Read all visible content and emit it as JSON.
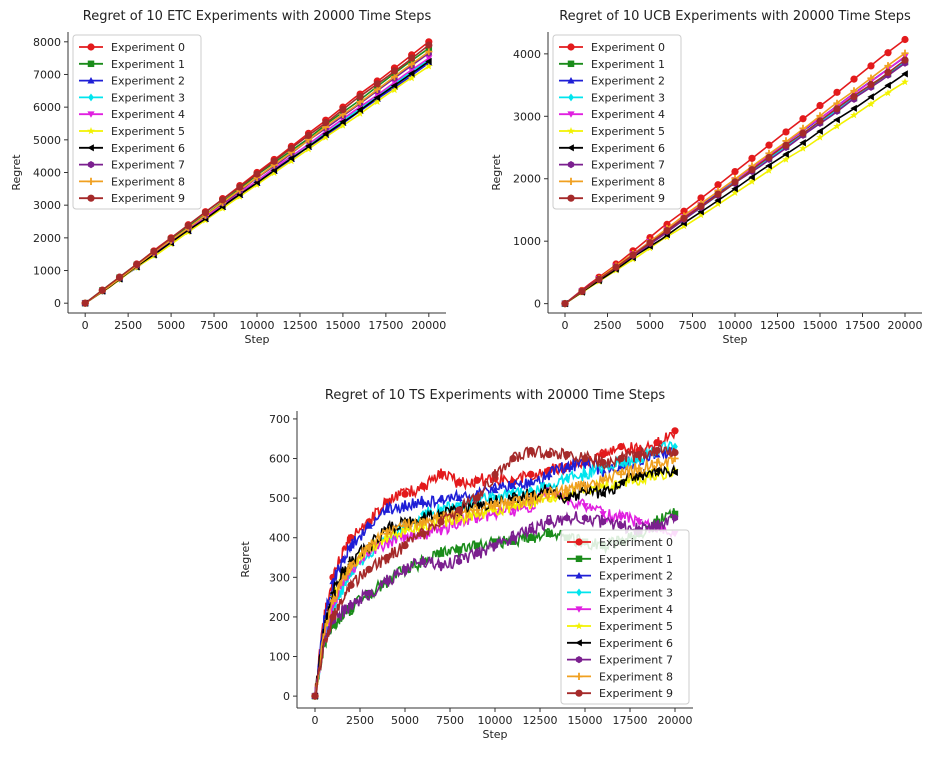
{
  "chart_data": [
    {
      "type": "line",
      "title": "Regret of 10 ETC Experiments with 20000 Time Steps",
      "xlabel": "Step",
      "ylabel": "Regret",
      "xlim": [
        -1000,
        21000
      ],
      "ylim": [
        -300,
        8300
      ],
      "xticks": [
        0,
        2500,
        5000,
        7500,
        10000,
        12500,
        15000,
        17500,
        20000
      ],
      "yticks": [
        0,
        1000,
        2000,
        3000,
        4000,
        5000,
        6000,
        7000,
        8000
      ],
      "legend_position": "upper-left",
      "series": [
        {
          "name": "Experiment 0",
          "color": "#e31a1c",
          "marker": "circle",
          "x": [
            0,
            20000
          ],
          "y": [
            0,
            8000
          ]
        },
        {
          "name": "Experiment 1",
          "color": "#1a8c1a",
          "marker": "square",
          "x": [
            0,
            20000
          ],
          "y": [
            0,
            7800
          ]
        },
        {
          "name": "Experiment 2",
          "color": "#1f1fd6",
          "marker": "triangle-up",
          "x": [
            0,
            20000
          ],
          "y": [
            0,
            7350
          ]
        },
        {
          "name": "Experiment 3",
          "color": "#00e5ee",
          "marker": "diamond",
          "x": [
            0,
            20000
          ],
          "y": [
            0,
            7450
          ]
        },
        {
          "name": "Experiment 4",
          "color": "#e020e0",
          "marker": "triangle-down",
          "x": [
            0,
            20000
          ],
          "y": [
            0,
            7500
          ]
        },
        {
          "name": "Experiment 5",
          "color": "#f2f200",
          "marker": "star",
          "x": [
            0,
            20000
          ],
          "y": [
            0,
            7250
          ]
        },
        {
          "name": "Experiment 6",
          "color": "#000000",
          "marker": "triangle-left",
          "x": [
            0,
            20000
          ],
          "y": [
            0,
            7400
          ]
        },
        {
          "name": "Experiment 7",
          "color": "#7b1f8f",
          "marker": "hexagon",
          "x": [
            0,
            20000
          ],
          "y": [
            0,
            7650
          ]
        },
        {
          "name": "Experiment 8",
          "color": "#f0a020",
          "marker": "plus",
          "x": [
            0,
            20000
          ],
          "y": [
            0,
            7700
          ]
        },
        {
          "name": "Experiment 9",
          "color": "#a52a2a",
          "marker": "circle",
          "x": [
            0,
            20000
          ],
          "y": [
            0,
            7900
          ]
        }
      ]
    },
    {
      "type": "line",
      "title": "Regret of 10 UCB Experiments with 20000 Time Steps",
      "xlabel": "Step",
      "ylabel": "Regret",
      "xlim": [
        -1000,
        21000
      ],
      "ylim": [
        -150,
        4350
      ],
      "xticks": [
        0,
        2500,
        5000,
        7500,
        10000,
        12500,
        15000,
        17500,
        20000
      ],
      "yticks": [
        0,
        1000,
        2000,
        3000,
        4000
      ],
      "legend_position": "upper-left",
      "series": [
        {
          "name": "Experiment 0",
          "color": "#e31a1c",
          "marker": "circle",
          "x": [
            0,
            20000
          ],
          "y": [
            0,
            4230
          ]
        },
        {
          "name": "Experiment 1",
          "color": "#1a8c1a",
          "marker": "square",
          "x": [
            0,
            20000
          ],
          "y": [
            0,
            3870
          ]
        },
        {
          "name": "Experiment 2",
          "color": "#1f1fd6",
          "marker": "triangle-up",
          "x": [
            0,
            20000
          ],
          "y": [
            0,
            3950
          ]
        },
        {
          "name": "Experiment 3",
          "color": "#00e5ee",
          "marker": "diamond",
          "x": [
            0,
            20000
          ],
          "y": [
            0,
            3880
          ]
        },
        {
          "name": "Experiment 4",
          "color": "#e020e0",
          "marker": "triangle-down",
          "x": [
            0,
            20000
          ],
          "y": [
            0,
            3960
          ]
        },
        {
          "name": "Experiment 5",
          "color": "#f2f200",
          "marker": "star",
          "x": [
            0,
            20000
          ],
          "y": [
            0,
            3550
          ]
        },
        {
          "name": "Experiment 6",
          "color": "#000000",
          "marker": "triangle-left",
          "x": [
            0,
            20000
          ],
          "y": [
            0,
            3680
          ]
        },
        {
          "name": "Experiment 7",
          "color": "#7b1f8f",
          "marker": "hexagon",
          "x": [
            0,
            20000
          ],
          "y": [
            0,
            3850
          ]
        },
        {
          "name": "Experiment 8",
          "color": "#f0a020",
          "marker": "plus",
          "x": [
            0,
            20000
          ],
          "y": [
            0,
            4010
          ]
        },
        {
          "name": "Experiment 9",
          "color": "#a52a2a",
          "marker": "circle",
          "x": [
            0,
            20000
          ],
          "y": [
            0,
            3900
          ]
        }
      ]
    },
    {
      "type": "line",
      "title": "Regret of 10 TS Experiments with 20000 Time Steps",
      "xlabel": "Step",
      "ylabel": "Regret",
      "xlim": [
        -1000,
        21000
      ],
      "ylim": [
        -30,
        720
      ],
      "xticks": [
        0,
        2500,
        5000,
        7500,
        10000,
        12500,
        15000,
        17500,
        20000
      ],
      "yticks": [
        0,
        100,
        200,
        300,
        400,
        500,
        600,
        700
      ],
      "legend_position": "lower-right",
      "series": [
        {
          "name": "Experiment 0",
          "color": "#e31a1c",
          "marker": "circle",
          "x": [
            0,
            500,
            1000,
            1500,
            2000,
            3000,
            4000,
            5000,
            6000,
            7000,
            8000,
            9000,
            10000,
            11000,
            12000,
            13000,
            14000,
            15000,
            16000,
            17000,
            18000,
            19000,
            20000
          ],
          "y": [
            0,
            200,
            300,
            360,
            400,
            440,
            490,
            510,
            530,
            560,
            540,
            545,
            550,
            540,
            560,
            570,
            580,
            590,
            610,
            630,
            620,
            640,
            670
          ]
        },
        {
          "name": "Experiment 1",
          "color": "#1a8c1a",
          "marker": "square",
          "x": [
            0,
            500,
            1000,
            1500,
            2000,
            3000,
            4000,
            5000,
            6000,
            7000,
            8000,
            9000,
            10000,
            11000,
            12000,
            13000,
            14000,
            15000,
            16000,
            17000,
            18000,
            19000,
            20000
          ],
          "y": [
            0,
            130,
            180,
            200,
            220,
            260,
            290,
            320,
            340,
            360,
            370,
            380,
            390,
            390,
            400,
            410,
            400,
            390,
            380,
            390,
            410,
            440,
            460
          ]
        },
        {
          "name": "Experiment 2",
          "color": "#1f1fd6",
          "marker": "triangle-up",
          "x": [
            0,
            500,
            1000,
            1500,
            2000,
            3000,
            4000,
            5000,
            6000,
            7000,
            8000,
            9000,
            10000,
            11000,
            12000,
            13000,
            14000,
            15000,
            16000,
            17000,
            18000,
            19000,
            20000
          ],
          "y": [
            0,
            190,
            290,
            340,
            380,
            430,
            470,
            480,
            490,
            500,
            500,
            510,
            520,
            530,
            540,
            560,
            580,
            590,
            570,
            580,
            600,
            610,
            620
          ]
        },
        {
          "name": "Experiment 3",
          "color": "#00e5ee",
          "marker": "diamond",
          "x": [
            0,
            500,
            1000,
            1500,
            2000,
            3000,
            4000,
            5000,
            6000,
            7000,
            8000,
            9000,
            10000,
            11000,
            12000,
            13000,
            14000,
            15000,
            16000,
            17000,
            18000,
            19000,
            20000
          ],
          "y": [
            0,
            140,
            220,
            270,
            310,
            360,
            400,
            430,
            460,
            470,
            480,
            490,
            500,
            510,
            520,
            530,
            550,
            560,
            580,
            590,
            600,
            620,
            630
          ]
        },
        {
          "name": "Experiment 4",
          "color": "#e020e0",
          "marker": "triangle-down",
          "x": [
            0,
            500,
            1000,
            1500,
            2000,
            3000,
            4000,
            5000,
            6000,
            7000,
            8000,
            9000,
            10000,
            11000,
            12000,
            13000,
            14000,
            15000,
            16000,
            17000,
            18000,
            19000,
            20000
          ],
          "y": [
            0,
            150,
            230,
            290,
            320,
            360,
            390,
            400,
            410,
            420,
            440,
            450,
            460,
            470,
            480,
            520,
            500,
            480,
            460,
            450,
            440,
            420,
            410
          ]
        },
        {
          "name": "Experiment 5",
          "color": "#f2f200",
          "marker": "star",
          "x": [
            0,
            500,
            1000,
            1500,
            2000,
            3000,
            4000,
            5000,
            6000,
            7000,
            8000,
            9000,
            10000,
            11000,
            12000,
            13000,
            14000,
            15000,
            16000,
            17000,
            18000,
            19000,
            20000
          ],
          "y": [
            0,
            160,
            250,
            300,
            330,
            370,
            400,
            420,
            430,
            440,
            450,
            460,
            470,
            480,
            490,
            500,
            510,
            520,
            530,
            540,
            550,
            560,
            570
          ]
        },
        {
          "name": "Experiment 6",
          "color": "#000000",
          "marker": "triangle-left",
          "x": [
            0,
            500,
            1000,
            1500,
            2000,
            3000,
            4000,
            5000,
            6000,
            7000,
            8000,
            9000,
            10000,
            11000,
            12000,
            13000,
            14000,
            15000,
            16000,
            17000,
            18000,
            19000,
            20000
          ],
          "y": [
            0,
            170,
            260,
            310,
            340,
            380,
            420,
            440,
            450,
            460,
            470,
            480,
            490,
            500,
            510,
            520,
            500,
            520,
            510,
            540,
            560,
            570,
            565
          ]
        },
        {
          "name": "Experiment 7",
          "color": "#7b1f8f",
          "marker": "hexagon",
          "x": [
            0,
            500,
            1000,
            1500,
            2000,
            3000,
            4000,
            5000,
            6000,
            7000,
            8000,
            9000,
            10000,
            11000,
            12000,
            13000,
            14000,
            15000,
            16000,
            17000,
            18000,
            19000,
            20000
          ],
          "y": [
            0,
            140,
            190,
            210,
            230,
            260,
            290,
            320,
            340,
            330,
            340,
            360,
            380,
            400,
            420,
            440,
            450,
            450,
            440,
            430,
            420,
            430,
            450
          ]
        },
        {
          "name": "Experiment 8",
          "color": "#f0a020",
          "marker": "plus",
          "x": [
            0,
            500,
            1000,
            1500,
            2000,
            3000,
            4000,
            5000,
            6000,
            7000,
            8000,
            9000,
            10000,
            11000,
            12000,
            13000,
            14000,
            15000,
            16000,
            17000,
            18000,
            19000,
            20000
          ],
          "y": [
            0,
            160,
            240,
            290,
            330,
            380,
            410,
            430,
            440,
            450,
            460,
            470,
            480,
            490,
            500,
            510,
            520,
            530,
            545,
            560,
            575,
            590,
            600
          ]
        },
        {
          "name": "Experiment 9",
          "color": "#a52a2a",
          "marker": "circle",
          "x": [
            0,
            500,
            1000,
            1500,
            2000,
            3000,
            4000,
            5000,
            6000,
            7000,
            8000,
            9000,
            10000,
            11000,
            12000,
            13000,
            14000,
            15000,
            16000,
            17000,
            18000,
            19000,
            20000
          ],
          "y": [
            0,
            130,
            200,
            240,
            280,
            320,
            350,
            380,
            410,
            440,
            470,
            500,
            560,
            600,
            620,
            610,
            610,
            600,
            590,
            600,
            610,
            620,
            615
          ]
        }
      ]
    }
  ]
}
